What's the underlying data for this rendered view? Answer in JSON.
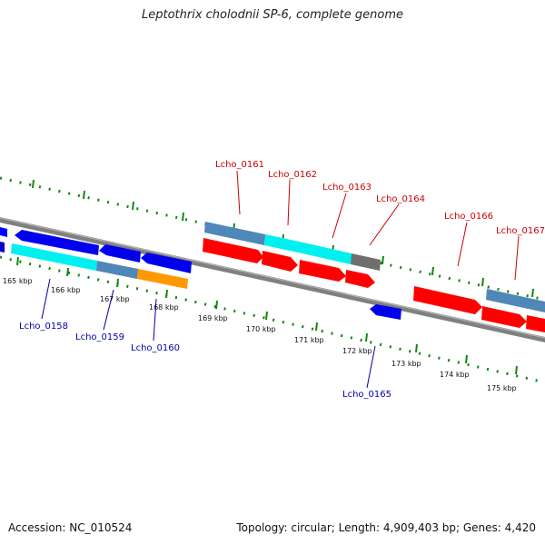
{
  "title": "Leptothrix cholodnii SP-6, complete genome",
  "footer": {
    "accession": "Accession: NC_010524",
    "topology": "Topology: circular; Length: 4,909,403 bp; Genes: 4,420"
  },
  "colors": {
    "forward_cds": "#ff0000",
    "reverse_cds": "#0000ff",
    "cog_steelblue": "#4f87b8",
    "cog_cyan": "#00f5f5",
    "cog_orange": "#ff9900",
    "cog_gray": "#6e6e6e",
    "backbone": "#808080",
    "ticks": "#118811",
    "fwd_label": "#cc0000",
    "rev_label": "#0000aa"
  },
  "kbp_labels": [
    "165 kbp",
    "166 kbp",
    "167 kbp",
    "168 kbp",
    "169 kbp",
    "170 kbp",
    "171 kbp",
    "172 kbp",
    "173 kbp",
    "174 kbp",
    "175 kbp"
  ],
  "forward_genes": [
    "Lcho_0161",
    "Lcho_0162",
    "Lcho_0163",
    "Lcho_0164",
    "Lcho_0166",
    "Lcho_0167"
  ],
  "reverse_genes": [
    "Lcho_0158",
    "Lcho_0159",
    "Lcho_0160",
    "Lcho_0165"
  ]
}
